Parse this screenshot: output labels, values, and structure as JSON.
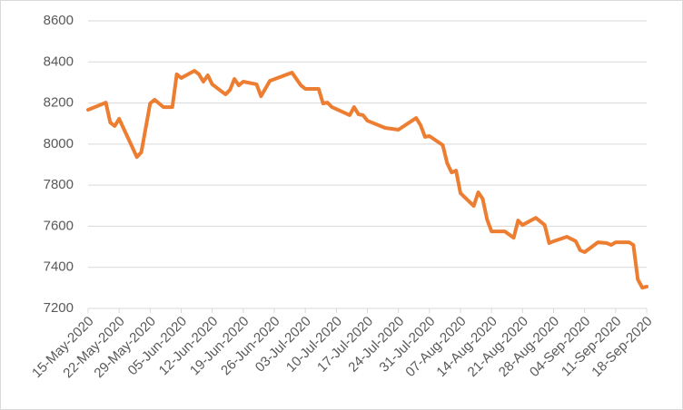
{
  "chart_data": {
    "type": "line",
    "x": [
      "2020-05-15",
      "2020-05-19",
      "2020-05-20",
      "2020-05-21",
      "2020-05-22",
      "2020-05-26",
      "2020-05-27",
      "2020-05-29",
      "2020-05-30",
      "2020-06-01",
      "2020-06-03",
      "2020-06-04",
      "2020-06-05",
      "2020-06-08",
      "2020-06-09",
      "2020-06-10",
      "2020-06-11",
      "2020-06-12",
      "2020-06-15",
      "2020-06-16",
      "2020-06-17",
      "2020-06-18",
      "2020-06-19",
      "2020-06-22",
      "2020-06-23",
      "2020-06-25",
      "2020-06-30",
      "2020-07-01",
      "2020-07-02",
      "2020-07-03",
      "2020-07-06",
      "2020-07-07",
      "2020-07-08",
      "2020-07-09",
      "2020-07-13",
      "2020-07-14",
      "2020-07-15",
      "2020-07-16",
      "2020-07-17",
      "2020-07-21",
      "2020-07-24",
      "2020-07-28",
      "2020-07-29",
      "2020-07-30",
      "2020-07-31",
      "2020-08-03",
      "2020-08-04",
      "2020-08-05",
      "2020-08-06",
      "2020-08-07",
      "2020-08-10",
      "2020-08-11",
      "2020-08-12",
      "2020-08-13",
      "2020-08-14",
      "2020-08-17",
      "2020-08-19",
      "2020-08-20",
      "2020-08-21",
      "2020-08-24",
      "2020-08-26",
      "2020-08-27",
      "2020-08-28",
      "2020-08-31",
      "2020-09-02",
      "2020-09-03",
      "2020-09-04",
      "2020-09-07",
      "2020-09-09",
      "2020-09-10",
      "2020-09-11",
      "2020-09-14",
      "2020-09-15",
      "2020-09-16",
      "2020-09-17",
      "2020-09-18"
    ],
    "series": [
      {
        "color": "#ED7D31",
        "values": [
          8167,
          8202,
          8105,
          8088,
          8123,
          7937,
          7960,
          8198,
          8216,
          8180,
          8180,
          8340,
          8322,
          8357,
          8340,
          8304,
          8335,
          8291,
          8242,
          8264,
          8317,
          8286,
          8304,
          8291,
          8233,
          8308,
          8348,
          8317,
          8286,
          8269,
          8269,
          8198,
          8202,
          8180,
          8141,
          8180,
          8145,
          8141,
          8114,
          8079,
          8070,
          8127,
          8092,
          8035,
          8039,
          7995,
          7907,
          7862,
          7871,
          7761,
          7699,
          7765,
          7734,
          7633,
          7575,
          7575,
          7544,
          7628,
          7606,
          7641,
          7606,
          7518,
          7527,
          7549,
          7527,
          7483,
          7474,
          7522,
          7518,
          7509,
          7522,
          7522,
          7509,
          7341,
          7301,
          7306
        ]
      }
    ],
    "xlim": [
      "2020-05-15",
      "2020-09-18"
    ],
    "xticks": [
      {
        "value": "2020-05-15",
        "label": "15-May-2020"
      },
      {
        "value": "2020-05-22",
        "label": "22-May-2020"
      },
      {
        "value": "2020-05-29",
        "label": "29-May-2020"
      },
      {
        "value": "2020-06-05",
        "label": "05-Jun-2020"
      },
      {
        "value": "2020-06-12",
        "label": "12-Jun-2020"
      },
      {
        "value": "2020-06-19",
        "label": "19-Jun-2020"
      },
      {
        "value": "2020-06-26",
        "label": "26-Jun-2020"
      },
      {
        "value": "2020-07-03",
        "label": "03-Jul-2020"
      },
      {
        "value": "2020-07-10",
        "label": "10-Jul-2020"
      },
      {
        "value": "2020-07-17",
        "label": "17-Jul-2020"
      },
      {
        "value": "2020-07-24",
        "label": "24-Jul-2020"
      },
      {
        "value": "2020-07-31",
        "label": "31-Jul-2020"
      },
      {
        "value": "2020-08-07",
        "label": "07-Aug-2020"
      },
      {
        "value": "2020-08-14",
        "label": "14-Aug-2020"
      },
      {
        "value": "2020-08-21",
        "label": "21-Aug-2020"
      },
      {
        "value": "2020-08-28",
        "label": "28-Aug-2020"
      },
      {
        "value": "2020-09-04",
        "label": "04-Sep-2020"
      },
      {
        "value": "2020-09-11",
        "label": "11-Sep-2020"
      },
      {
        "value": "2020-09-18",
        "label": "18-Sep-2020"
      }
    ],
    "ylim": [
      7200,
      8600
    ],
    "yticks": [
      7200,
      7400,
      7600,
      7800,
      8000,
      8200,
      8400,
      8600
    ],
    "grid": true
  }
}
